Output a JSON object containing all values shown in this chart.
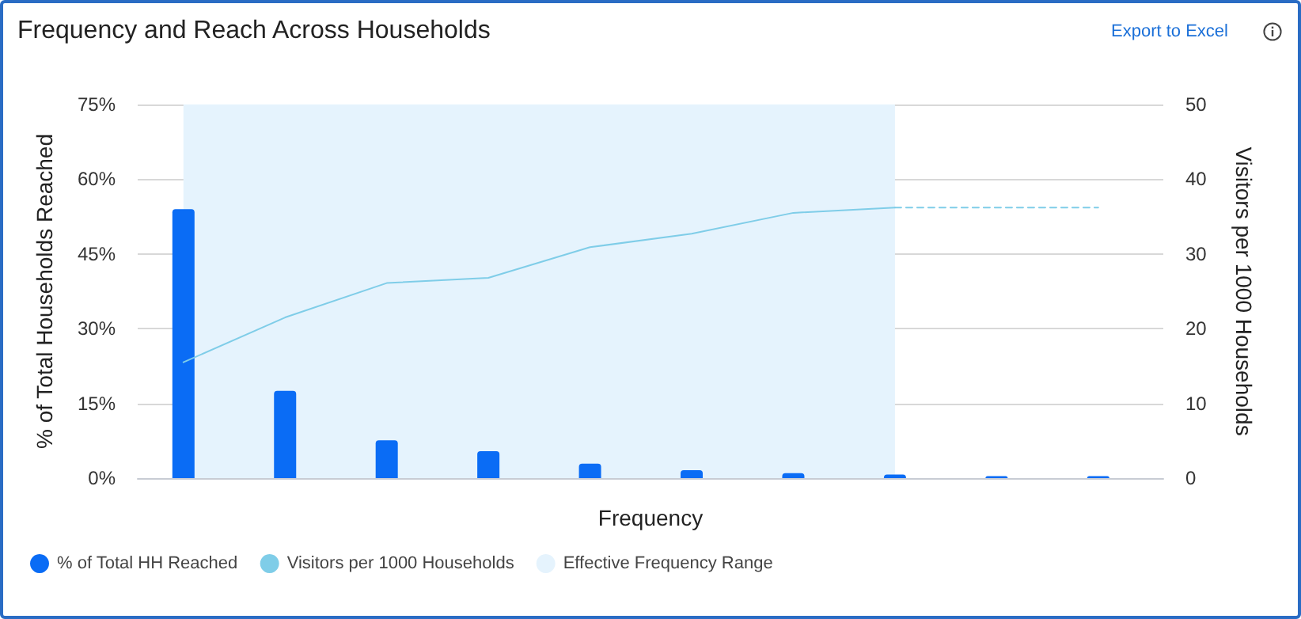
{
  "chart_data": {
    "type": "bar",
    "title": "Frequency and Reach Across Households",
    "annotations": [
      "Export to Excel"
    ],
    "xlabel": "Frequency",
    "ylabel": "% of Total Households Reached",
    "y2label": "Visitors per 1000 Households",
    "categories": [
      null,
      null,
      null,
      null,
      null,
      null,
      null,
      null,
      null,
      null
    ],
    "series": [
      {
        "name": "% of Total HH Reached",
        "color": "#0a6cf5",
        "values": [
          54,
          17.5,
          7.6,
          5.4,
          2.9,
          1.6,
          1.0,
          0.7,
          0.4,
          0.4
        ]
      },
      {
        "name": "Visitors per 1000 Households",
        "type": "line",
        "axis": "y2",
        "color": "#7fcde8",
        "line_style": "solid",
        "values": [
          15.5,
          21.5,
          26.1,
          26.8,
          30.9,
          32.7,
          35.5,
          36.2,
          null,
          null
        ]
      },
      {
        "type": "line",
        "axis": "y2",
        "color": "#7fcde8",
        "line_style": "dashed",
        "values": [
          null,
          null,
          null,
          null,
          null,
          null,
          null,
          36.2,
          36.2,
          36.2
        ]
      },
      {
        "name": "Effective Frequency Range",
        "type": "area",
        "color": "#e5f3fd",
        "values": [
          75,
          75,
          75,
          75,
          75,
          75,
          75,
          75,
          null,
          null
        ]
      }
    ],
    "ylim": [
      0,
      75
    ],
    "yticks": [
      {
        "value": 0,
        "label": "0%"
      },
      {
        "value": 15,
        "label": "15%"
      },
      {
        "value": 30,
        "label": "30%"
      },
      {
        "value": 45,
        "label": "45%"
      },
      {
        "value": 60,
        "label": "60%"
      },
      {
        "value": 75,
        "label": "75%"
      }
    ],
    "y2lim": [
      0,
      50
    ],
    "y2ticks": [
      0,
      10,
      20,
      30,
      40,
      50
    ],
    "grid": "y",
    "legend": "bottom left",
    "marker": "none"
  }
}
